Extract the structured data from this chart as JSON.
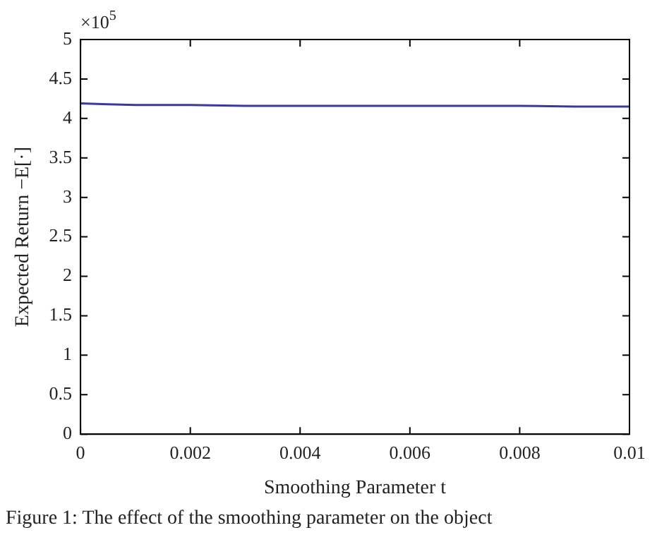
{
  "chart_data": {
    "type": "line",
    "xlabel": "Smoothing Parameter t",
    "ylabel": "Expected Return −E[·]",
    "x": [
      0,
      0.0005,
      0.001,
      0.002,
      0.003,
      0.004,
      0.005,
      0.006,
      0.007,
      0.008,
      0.009,
      0.01
    ],
    "series": [
      {
        "color": "#3a3a9a",
        "values": [
          4.19,
          4.18,
          4.17,
          4.17,
          4.16,
          4.16,
          4.16,
          4.16,
          4.16,
          4.16,
          4.15,
          4.15
        ]
      }
    ],
    "xlim": [
      0,
      0.01
    ],
    "xticks": [
      0,
      0.002,
      0.004,
      0.006,
      0.008,
      0.01
    ],
    "ylim": [
      0,
      5
    ],
    "yticks": [
      0,
      0.5,
      1,
      1.5,
      2,
      2.5,
      3,
      3.5,
      4,
      4.5,
      5
    ],
    "grid": false,
    "legend": false,
    "marker": "none",
    "line_style": "solid",
    "annotations": [
      "×10$^{5}$",
      "Figure 1: The effect of the smoothing parameter on the object"
    ]
  }
}
